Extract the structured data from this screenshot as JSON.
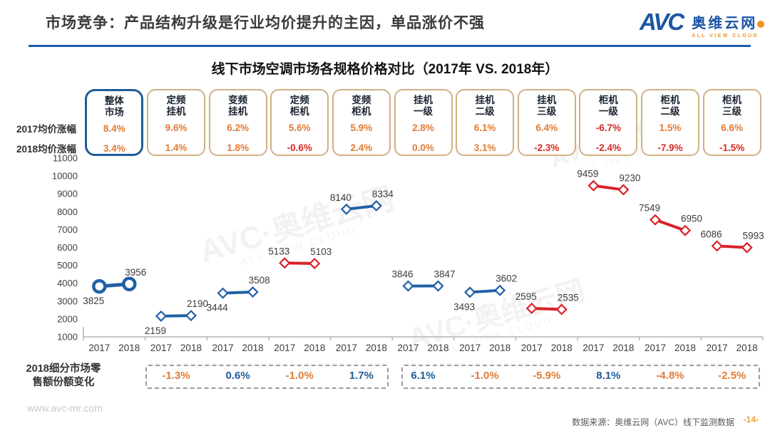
{
  "header": {
    "title": "市场竞争：产品结构升级是行业均价提升的主因，单品涨价不强",
    "logo": {
      "avc": "AVC",
      "cn": "奥维云网",
      "en": "ALL VIEW CLOUD"
    }
  },
  "chart_title": "线下市场空调市场各规格价格对比（2017年 VS. 2018年）",
  "row_labels": {
    "y2017": "2017均价涨幅",
    "y2018": "2018均价涨幅"
  },
  "share_label_lines": [
    "2018细分市场零",
    "售额份额变化"
  ],
  "footer": {
    "site": "www.avc-mr.com",
    "source": "数据来源：奥维云网（AVC）线下监测数据",
    "page": "-14-"
  },
  "watermark": {
    "text": "AVC·奥维云网",
    "sub": "ALL VIEW CLOUD"
  },
  "colors": {
    "divider_blue": "#1e5ca8",
    "logo_blue": "#1b55a4",
    "logo_orange": "#f0941e",
    "line_blue": "#2161a6",
    "line_red": "#da2128",
    "pct_positive_orange": "#e07b35",
    "pct_negative_red": "#d42a22",
    "share_positive_blue": "#1f5c99",
    "share_negative_orange": "#e07b35",
    "box_border_tan": "#d0b183",
    "highlight_border_blue": "#1f5c99",
    "axis_gray": "#b3b3b3",
    "page_number_orange": "#e8a33d"
  },
  "chart_data": {
    "type": "line",
    "title": "线下市场空调市场各规格价格对比（2017年 VS. 2018年）",
    "ylim": [
      1000,
      11000
    ],
    "ytick_step": 1000,
    "grid": false,
    "x_sublabels": [
      "2017",
      "2018"
    ],
    "categories": [
      {
        "label": "整体市场",
        "label_lines": [
          "整体",
          "市场"
        ],
        "pct_2017": "8.4%",
        "pct_2018": "3.4%",
        "price_2017": 3825,
        "price_2018": 3956,
        "color": "blue",
        "highlight": true,
        "label17_pos": "below"
      },
      {
        "label": "定频挂机",
        "label_lines": [
          "定频",
          "挂机"
        ],
        "pct_2017": "9.6%",
        "pct_2018": "1.4%",
        "price_2017": 2159,
        "price_2018": 2190,
        "color": "blue",
        "highlight": false,
        "label17_pos": "below"
      },
      {
        "label": "变频挂机",
        "label_lines": [
          "变频",
          "挂机"
        ],
        "pct_2017": "6.2%",
        "pct_2018": "1.8%",
        "price_2017": 3444,
        "price_2018": 3508,
        "color": "blue",
        "highlight": false,
        "label17_pos": "below"
      },
      {
        "label": "定频柜机",
        "label_lines": [
          "定频",
          "柜机"
        ],
        "pct_2017": "5.6%",
        "pct_2018": "-0.6%",
        "price_2017": 5133,
        "price_2018": 5103,
        "color": "red",
        "highlight": false,
        "label17_pos": "above"
      },
      {
        "label": "变频柜机",
        "label_lines": [
          "变频",
          "柜机"
        ],
        "pct_2017": "5.9%",
        "pct_2018": "2.4%",
        "price_2017": 8140,
        "price_2018": 8334,
        "color": "blue",
        "highlight": false,
        "label17_pos": "above"
      },
      {
        "label": "挂机一级",
        "label_lines": [
          "挂机",
          "一级"
        ],
        "pct_2017": "2.8%",
        "pct_2018": "0.0%",
        "price_2017": 3846,
        "price_2018": 3847,
        "color": "blue",
        "highlight": false,
        "label17_pos": "above"
      },
      {
        "label": "挂机二级",
        "label_lines": [
          "挂机",
          "二级"
        ],
        "pct_2017": "6.1%",
        "pct_2018": "3.1%",
        "price_2017": 3493,
        "price_2018": 3602,
        "color": "blue",
        "highlight": false,
        "label17_pos": "below"
      },
      {
        "label": "挂机三级",
        "label_lines": [
          "挂机",
          "三级"
        ],
        "pct_2017": "6.4%",
        "pct_2018": "-2.3%",
        "price_2017": 2595,
        "price_2018": 2535,
        "color": "red",
        "highlight": false,
        "label17_pos": "above"
      },
      {
        "label": "柜机一级",
        "label_lines": [
          "柜机",
          "一级"
        ],
        "pct_2017": "-6.7%",
        "pct_2018": "-2.4%",
        "price_2017": 9459,
        "price_2018": 9230,
        "color": "red",
        "highlight": false,
        "label17_pos": "above"
      },
      {
        "label": "柜机二级",
        "label_lines": [
          "柜机",
          "二级"
        ],
        "pct_2017": "1.5%",
        "pct_2018": "-7.9%",
        "price_2017": 7549,
        "price_2018": 6950,
        "color": "red",
        "highlight": false,
        "label17_pos": "above"
      },
      {
        "label": "柜机三级",
        "label_lines": [
          "柜机",
          "三级"
        ],
        "pct_2017": "6.6%",
        "pct_2018": "-1.5%",
        "price_2017": 6086,
        "price_2018": 5993,
        "color": "red",
        "highlight": false,
        "label17_pos": "above"
      }
    ],
    "share_change": {
      "box1": [
        "-1.3%",
        "0.6%",
        "-1.0%",
        "1.7%"
      ],
      "box2": [
        "6.1%",
        "-1.0%",
        "-5.9%",
        "8.1%",
        "-4.8%",
        "-2.5%"
      ]
    }
  }
}
